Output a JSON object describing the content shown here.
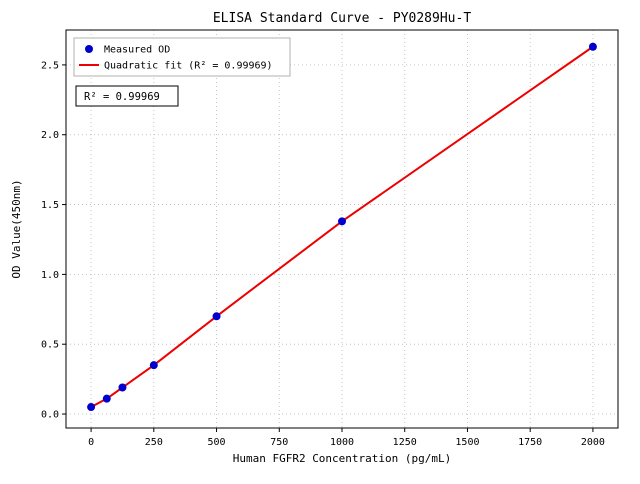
{
  "chart_data": {
    "type": "scatter",
    "title": "ELISA Standard Curve - PY0289Hu-T",
    "xlabel": "Human FGFR2 Concentration (pg/mL)",
    "ylabel": "OD Value(450nm)",
    "xlim": [
      -100,
      2100
    ],
    "ylim": [
      -0.1,
      2.75
    ],
    "xticks": [
      0,
      250,
      500,
      750,
      1000,
      1250,
      1500,
      1750,
      2000
    ],
    "yticks": [
      0.0,
      0.5,
      1.0,
      1.5,
      2.0,
      2.5
    ],
    "grid": true,
    "legend_position": "upper left",
    "annotation": "R² = 0.99969",
    "colors": {
      "points": "#0000cd",
      "fit_line": "#ee0000",
      "grid": "#b8b8b8"
    },
    "series": [
      {
        "name": "Measured OD",
        "kind": "scatter",
        "x": [
          0,
          62.5,
          125,
          250,
          500,
          1000,
          2000
        ],
        "y": [
          0.05,
          0.11,
          0.19,
          0.35,
          0.7,
          1.38,
          2.63
        ]
      },
      {
        "name": "Quadratic fit (R² = 0.99969)",
        "kind": "line"
      }
    ]
  }
}
